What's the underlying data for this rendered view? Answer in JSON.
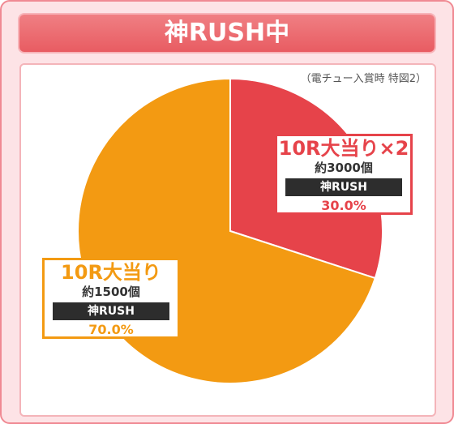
{
  "header": {
    "title": "神RUSH中"
  },
  "note": "（電チュー入賞時 特図2）",
  "chart_data": {
    "type": "pie",
    "title": "神RUSH中",
    "subtitle": "（電チュー入賞時 特図2）",
    "slices": [
      {
        "label": "10R大当り×2",
        "sublabel": "約3000個",
        "mode": "神RUSH",
        "percent_text": "30.0%",
        "value": 30.0,
        "color": "#e6434a"
      },
      {
        "label": "10R大当り",
        "sublabel": "約1500個",
        "mode": "神RUSH",
        "percent_text": "70.0%",
        "value": 70.0,
        "color": "#f39a12"
      }
    ],
    "start": "12 o'clock",
    "direction": "clockwise"
  }
}
